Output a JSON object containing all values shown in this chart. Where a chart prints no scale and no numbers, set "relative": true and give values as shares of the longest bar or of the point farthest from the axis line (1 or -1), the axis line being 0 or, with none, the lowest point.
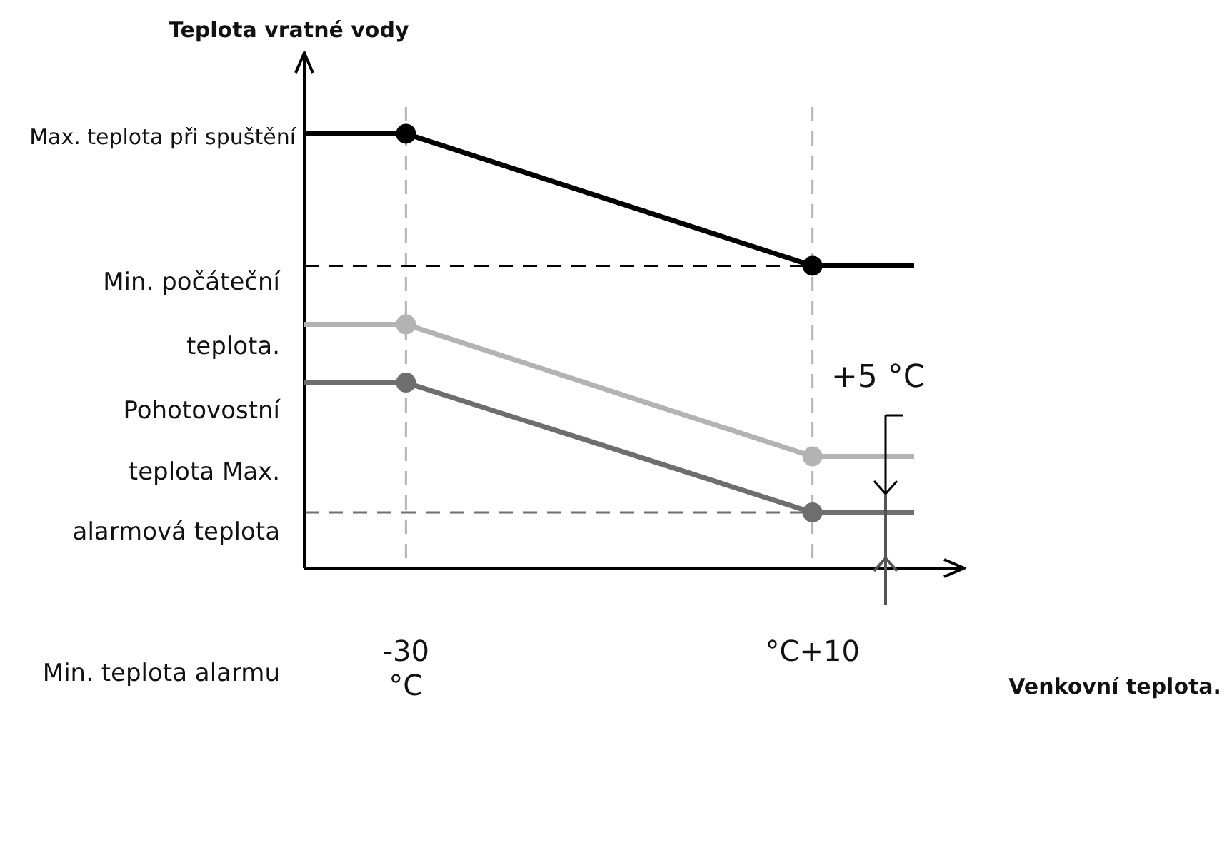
{
  "chart_data": {
    "type": "line",
    "relative": true,
    "ylabel": "Teplota vratné vody",
    "xlabel": "Venkovní teplota.",
    "categories": [
      null,
      "-30\n°C",
      null,
      null,
      null,
      "°C+10",
      null
    ],
    "series": [
      {
        "color": "#000000",
        "marker": "none",
        "values": [
          1,
          1,
          0.924,
          0.848,
          0.772,
          0.696,
          0.696
        ]
      },
      {
        "color": "#b3b3b3",
        "marker": "none",
        "values": [
          0.561,
          0.561,
          0.485,
          0.409,
          0.333,
          0.257,
          0.257
        ]
      },
      {
        "color": "#6e6e6e",
        "marker": "none",
        "values": [
          0.427,
          0.427,
          0.352,
          0.278,
          0.203,
          0.128,
          0.128
        ]
      },
      {
        "type": "scatter",
        "color": "#000000",
        "marker": "circle",
        "x": [
          "-30\n°C",
          "°C+10"
        ],
        "values": [
          1,
          0.696
        ]
      },
      {
        "type": "scatter",
        "color": "#b3b3b3",
        "marker": "circle",
        "x": [
          "-30\n°C",
          "°C+10"
        ],
        "values": [
          0.561,
          0.257
        ]
      },
      {
        "type": "scatter",
        "color": "#6e6e6e",
        "marker": "circle",
        "x": [
          "-30\n°C",
          "°C+10"
        ],
        "values": [
          0.427,
          0.128
        ]
      }
    ],
    "grid": false,
    "legend": false,
    "ref_lines": [
      {
        "axis": "x",
        "value": "-30\n°C",
        "color": "#b3b3b3",
        "line_style": "dashed"
      },
      {
        "axis": "x",
        "value": "°C+10",
        "color": "#b3b3b3",
        "line_style": "dashed"
      },
      {
        "axis": "y",
        "value": 0.696,
        "color": "#000000",
        "line_style": "dashed"
      },
      {
        "axis": "y",
        "value": 0.128,
        "color": "#6e6e6e",
        "line_style": "dashed"
      }
    ],
    "annotations": [
      "Max. teplota při spuštění",
      "Min. počáteční",
      "teplota.",
      "Pohotovostní",
      "teplota Max.",
      "alarmová teplota",
      "Min. teplota alarmu",
      "+5 °C"
    ]
  }
}
